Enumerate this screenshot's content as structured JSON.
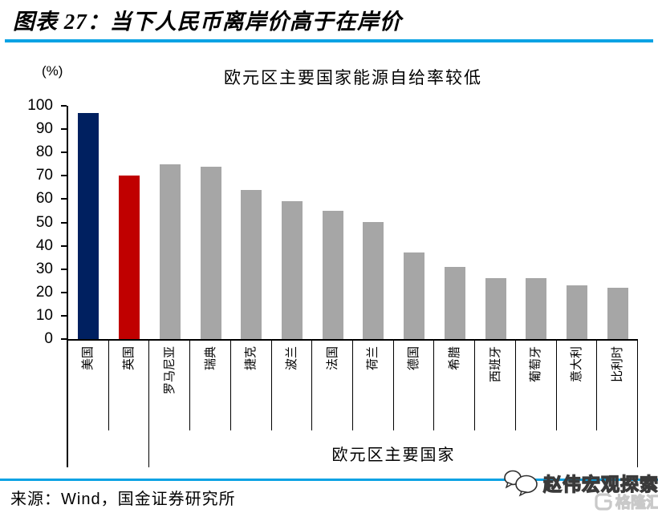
{
  "header": {
    "title": "图表 27：当下人民币离岸价高于在岸价"
  },
  "colors": {
    "accent_blue": "#0AA2E4",
    "bar_navy": "#002060",
    "bar_red": "#C00000",
    "bar_gray": "#A6A6A6",
    "axis_black": "#000000"
  },
  "chart_data": {
    "type": "bar",
    "title": "欧元区主要国家能源自给率较低",
    "y_unit": "(%)",
    "categories": [
      "美国",
      "英国",
      "罗马尼亚",
      "瑞典",
      "捷克",
      "波兰",
      "法国",
      "荷兰",
      "德国",
      "希腊",
      "西班牙",
      "葡萄牙",
      "意大利",
      "比利时"
    ],
    "values": [
      97,
      70,
      75,
      74,
      64,
      59,
      55,
      50,
      37,
      31,
      26,
      26,
      23,
      22
    ],
    "bar_colors": [
      "#002060",
      "#C00000",
      "#A6A6A6",
      "#A6A6A6",
      "#A6A6A6",
      "#A6A6A6",
      "#A6A6A6",
      "#A6A6A6",
      "#A6A6A6",
      "#A6A6A6",
      "#A6A6A6",
      "#A6A6A6",
      "#A6A6A6",
      "#A6A6A6"
    ],
    "group_label": "欧元区主要国家",
    "group_span": {
      "start_index": 2,
      "end_index": 13
    },
    "xlabel": "",
    "ylabel": "",
    "ylim": [
      0,
      100
    ],
    "ytick_step": 10,
    "ytick_labels": [
      "0",
      "10",
      "20",
      "30",
      "40",
      "50",
      "60",
      "70",
      "80",
      "90",
      "100"
    ],
    "grid": false,
    "legend": false,
    "x_label_rotation": -90
  },
  "footer": {
    "source": "来源：Wind，国金证券研究所"
  },
  "watermark": {
    "text": "赵伟宏观探索",
    "logo_text": "格隆汇",
    "chat_icon": "chat-bubbles-icon",
    "logo_icon": "g-rounded-square-icon"
  }
}
